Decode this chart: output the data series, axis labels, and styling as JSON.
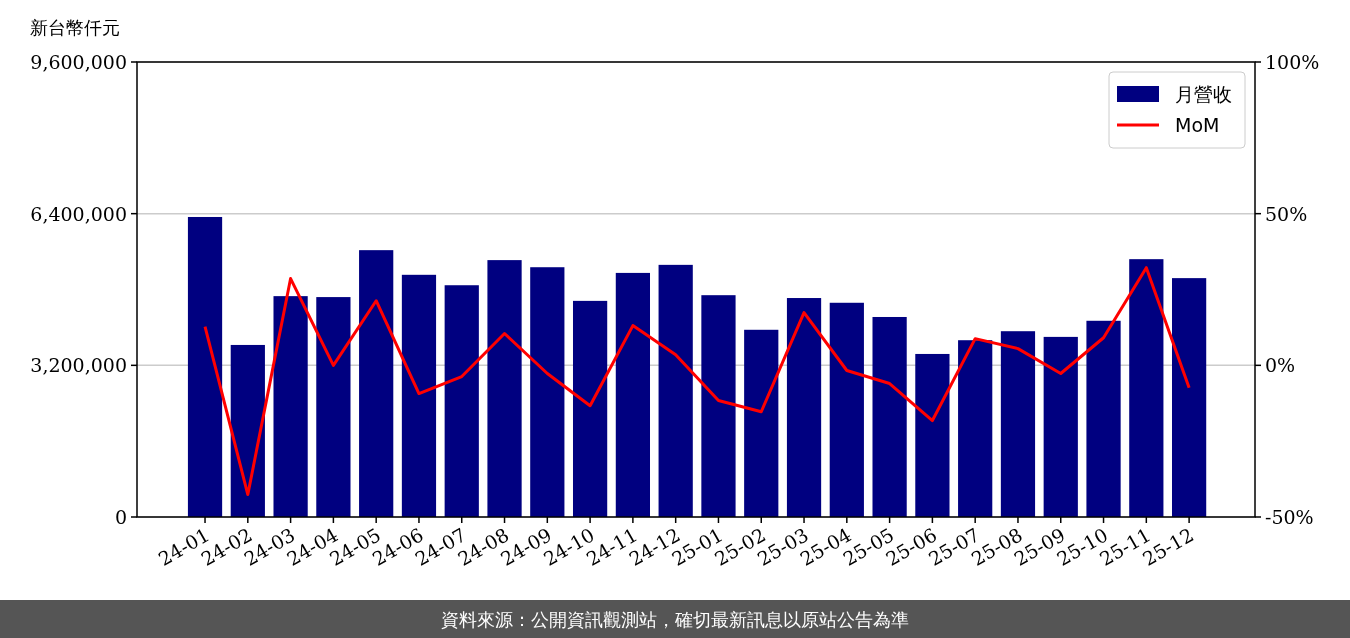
{
  "chart_data": {
    "type": "bar",
    "ylabel": "新台幣仟元",
    "categories": [
      "24-01",
      "24-02",
      "24-03",
      "24-04",
      "24-05",
      "24-06",
      "24-07",
      "24-08",
      "24-09",
      "24-10",
      "24-11",
      "24-12",
      "25-01",
      "25-02",
      "25-03",
      "25-04",
      "25-05",
      "25-06",
      "25-07",
      "25-08",
      "25-09",
      "25-10",
      "25-11",
      "25-12"
    ],
    "series": [
      {
        "name": "月營收",
        "color": "#000080",
        "values": [
          6330000,
          3630000,
          4660000,
          4640000,
          5630000,
          5110000,
          4890000,
          5420000,
          5270000,
          4560000,
          5150000,
          5320000,
          4680000,
          3950000,
          4620000,
          4520000,
          4220000,
          3440000,
          3730000,
          3920000,
          3800000,
          4140000,
          5440000,
          5040000
        ]
      },
      {
        "name": "MoM",
        "type": "line",
        "axis": "y2",
        "color": "#ff0000",
        "values": [
          12.8,
          -42.6,
          28.6,
          0,
          21.3,
          -9.3,
          -3.7,
          10.5,
          -2.7,
          -13.3,
          13.1,
          3.5,
          -11.6,
          -15.3,
          17.4,
          -1.7,
          -6.0,
          -18.2,
          8.8,
          5.5,
          -2.7,
          9.1,
          32.2,
          -7.4
        ]
      }
    ],
    "ylim": [
      0,
      9600000
    ],
    "yticks": [
      {
        "value": 0,
        "label": "0"
      },
      {
        "value": 3200000,
        "label": "3,200,000"
      },
      {
        "value": 6400000,
        "label": "6,400,000"
      },
      {
        "value": 9600000,
        "label": "9,600,000"
      }
    ],
    "y2lim": [
      -50,
      100
    ],
    "y2ticks": [
      {
        "value": -50,
        "label": "-50%"
      },
      {
        "value": 0,
        "label": "0%"
      },
      {
        "value": 50,
        "label": "50%"
      },
      {
        "value": 100,
        "label": "100%"
      }
    ],
    "grid": "y",
    "legend": "top right",
    "annotations": [
      "資料來源：公開資訊觀測站，確切最新訊息以原站公告為準"
    ]
  }
}
